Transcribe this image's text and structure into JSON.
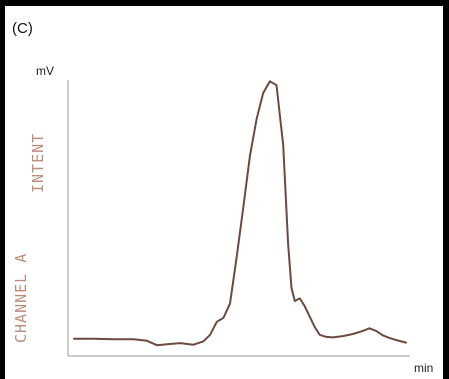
{
  "panel_label": "(C)",
  "stamps": [
    "INTENT",
    "CHANNEL A"
  ],
  "colors": {
    "trace": "#6b4b40",
    "axis": "#9a9a9a",
    "frame": "#000000",
    "stamp": "#b07a66"
  },
  "chart_data": {
    "type": "line",
    "title": "",
    "xlabel": "min",
    "ylabel": "mV",
    "grid": false,
    "legend": "none",
    "xlim": [
      0,
      100
    ],
    "ylim": [
      0,
      100
    ],
    "series": [
      {
        "x": [
          0,
          6,
          12,
          18,
          22,
          25,
          28,
          32,
          36,
          39,
          41,
          43,
          45,
          47,
          49,
          51,
          53,
          55,
          57,
          59,
          61,
          63,
          64.5,
          65.5,
          66.5,
          68,
          69.5,
          71,
          72.5,
          74,
          76,
          78,
          81,
          84,
          87,
          89,
          91,
          93,
          95,
          97,
          100
        ],
        "y": [
          0.5,
          0.5,
          0.3,
          0.3,
          -0.3,
          -2.0,
          -1.6,
          -1.2,
          -1.8,
          -0.5,
          2.0,
          7.0,
          8.5,
          14.0,
          32.0,
          51.0,
          71.0,
          85.0,
          95.0,
          99.5,
          98.0,
          75.0,
          37.0,
          20.0,
          15.0,
          16.0,
          13.0,
          9.0,
          5.0,
          2.0,
          1.2,
          1.0,
          1.5,
          2.3,
          3.5,
          4.5,
          3.5,
          1.8,
          0.8,
          0.0,
          -1.0
        ]
      }
    ]
  }
}
